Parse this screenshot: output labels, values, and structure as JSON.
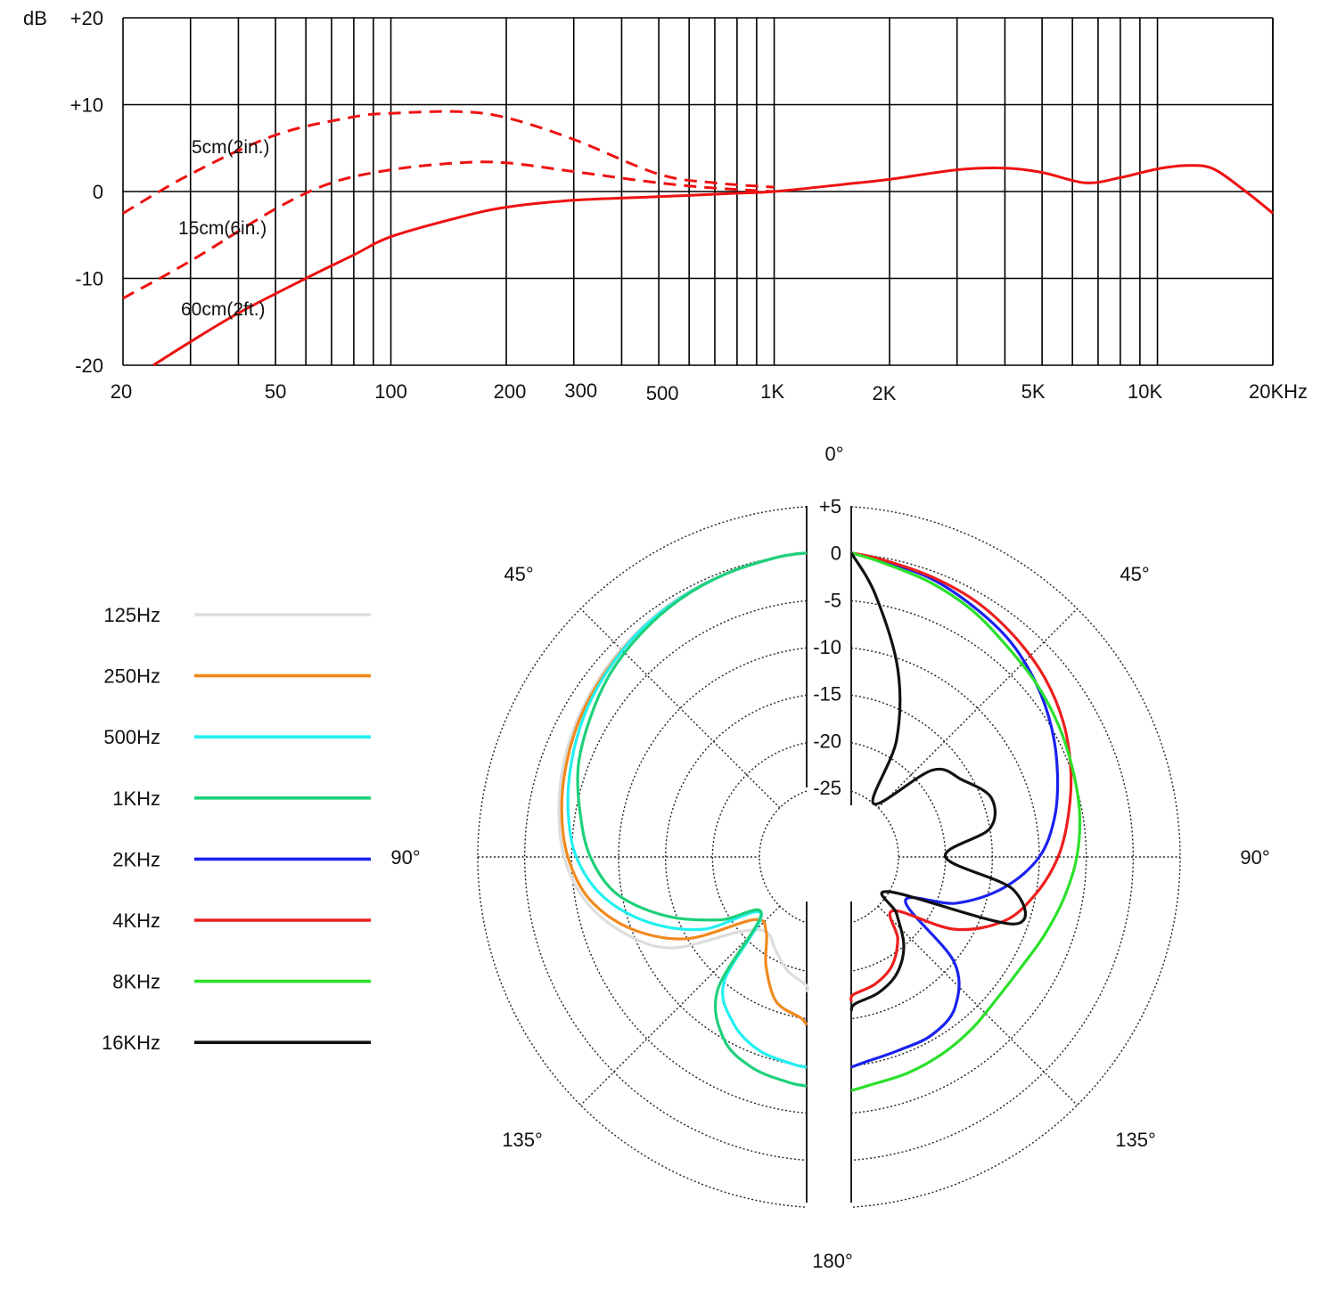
{
  "chart_data": [
    {
      "type": "line",
      "x_scale": "log",
      "xlim": [
        20,
        20000
      ],
      "ylim": [
        -20,
        20
      ],
      "grid": true,
      "ylabel": "dB",
      "y_ticks": [
        {
          "value": 20,
          "label": "+20"
        },
        {
          "value": 10,
          "label": "+10"
        },
        {
          "value": 0,
          "label": "0"
        },
        {
          "value": -10,
          "label": "-10"
        },
        {
          "value": -20,
          "label": "-20"
        }
      ],
      "x_ticks": [
        {
          "value": 20,
          "label": "20"
        },
        {
          "value": 50,
          "label": "50"
        },
        {
          "value": 100,
          "label": "100"
        },
        {
          "value": 200,
          "label": "200"
        },
        {
          "value": 300,
          "label": "300"
        },
        {
          "value": 500,
          "label": "500"
        },
        {
          "value": 1000,
          "label": "1K"
        },
        {
          "value": 2000,
          "label": "2K"
        },
        {
          "value": 5000,
          "label": "5K"
        },
        {
          "value": 10000,
          "label": "10K"
        },
        {
          "value": 20000,
          "label": "20KHz"
        }
      ],
      "series": [
        {
          "name": "5cm(2in.)",
          "color": "#ee1111",
          "style": "dashed",
          "x": [
            20,
            30,
            50,
            80,
            100,
            150,
            200,
            300,
            500,
            700,
            1000
          ],
          "y": [
            -2.5,
            2,
            6.5,
            8.6,
            9,
            9.2,
            8.5,
            6,
            2,
            1,
            0.5
          ]
        },
        {
          "name": "15cm(6in.)",
          "color": "#ee1111",
          "style": "dashed",
          "x": [
            20,
            30,
            50,
            70,
            100,
            150,
            200,
            300,
            500,
            700,
            1000
          ],
          "y": [
            -12.3,
            -8,
            -2,
            1,
            2.5,
            3.3,
            3.3,
            2.3,
            1,
            0.4,
            0
          ]
        },
        {
          "name": "60cm(2ft.)",
          "color": "#ee1111",
          "style": "solid",
          "x": [
            24,
            30,
            40,
            60,
            80,
            100,
            150,
            200,
            300,
            500,
            800,
            1000,
            1500,
            2000,
            3000,
            4000,
            5000,
            6500,
            8000,
            10000,
            12000,
            14000,
            17000,
            20000
          ],
          "y": [
            -20,
            -17.3,
            -14,
            -10,
            -7.3,
            -5.2,
            -3,
            -1.8,
            -1,
            -0.6,
            -0.2,
            0,
            0.8,
            1.4,
            2.5,
            2.7,
            2.2,
            1,
            1.6,
            2.6,
            3,
            2.6,
            0,
            -2.5
          ]
        }
      ]
    },
    {
      "type": "polar",
      "r_unit": "dB",
      "r_range": [
        -25,
        5
      ],
      "r_ticks": [
        "+5",
        "0",
        "-5",
        "-10",
        "-15",
        "-20",
        "-25"
      ],
      "angle_labels": {
        "top": "0°",
        "upper_left": "45°",
        "upper_right": "45°",
        "left": "90°",
        "right": "90°",
        "lower_left": "135°",
        "lower_right": "135°",
        "bottom": "180°"
      },
      "legend": {
        "placement": "left",
        "entries": [
          {
            "label": "125Hz",
            "color": "#dddddd"
          },
          {
            "label": "250Hz",
            "color": "#f08a1e"
          },
          {
            "label": "500Hz",
            "color": "#22f0f0"
          },
          {
            "label": "1KHz",
            "color": "#1ed07a"
          },
          {
            "label": "2KHz",
            "color": "#1a22ee"
          },
          {
            "label": "4KHz",
            "color": "#ee1e1e"
          },
          {
            "label": "8KHz",
            "color": "#2be02b"
          },
          {
            "label": "16KHz",
            "color": "#111111"
          }
        ]
      },
      "left_half": {
        "angles": [
          0,
          10,
          20,
          30,
          40,
          50,
          60,
          70,
          80,
          90,
          100,
          110,
          120,
          130,
          140,
          150,
          160,
          170,
          180
        ],
        "series": [
          {
            "name": "125Hz",
            "color": "#dddddd",
            "r": [
              0,
              0,
              -0.3,
              -0.5,
              -0.9,
              -1.3,
              -1.8,
              -2.4,
              -3.2,
              -4.2,
              -6,
              -9,
              -13,
              -20,
              -22,
              -21,
              -19.5,
              -18.5,
              -18
            ]
          },
          {
            "name": "250Hz",
            "color": "#f08a1e",
            "r": [
              0,
              0,
              -0.3,
              -0.6,
              -1,
              -1.5,
              -2,
              -2.7,
              -3.5,
              -4.6,
              -6.5,
              -10,
              -15,
              -22,
              -22,
              -19,
              -16,
              -15,
              -14.5
            ]
          },
          {
            "name": "500Hz",
            "color": "#22f0f0",
            "r": [
              0,
              0,
              -0.3,
              -0.6,
              -1,
              -1.6,
              -2.3,
              -3.2,
              -4.2,
              -5.5,
              -8,
              -12,
              -17,
              -23,
              -15,
              -12,
              -10.5,
              -10,
              -10
            ]
          },
          {
            "name": "1KHz",
            "color": "#1ed07a",
            "r": [
              0,
              0,
              -0.3,
              -0.7,
              -1.3,
              -2,
              -3,
              -4,
              -5.5,
              -7,
              -9.5,
              -14,
              -19,
              -23,
              -14,
              -10,
              -8.5,
              -8,
              -8
            ]
          }
        ]
      },
      "right_half": {
        "angles": [
          0,
          10,
          20,
          30,
          40,
          50,
          60,
          70,
          80,
          90,
          100,
          110,
          120,
          130,
          140,
          150,
          160,
          170,
          180
        ],
        "series": [
          {
            "name": "2KHz",
            "color": "#1a22ee",
            "r": [
              0,
              -0.3,
              -0.8,
              -1.6,
              -2.4,
              -3.6,
              -5,
              -6.5,
              -8,
              -10,
              -13.5,
              -18,
              -23,
              -15,
              -11.5,
              -10.5,
              -10.5,
              -10.2,
              -10
            ]
          },
          {
            "name": "4KHz",
            "color": "#ee1e1e",
            "r": [
              0,
              -0.2,
              -0.6,
              -1,
              -1.7,
              -2.5,
              -3.6,
              -5,
              -6.5,
              -8,
              -10,
              -12.5,
              -17,
              -23.5,
              -21,
              -19,
              -18,
              -17.5,
              -17
            ]
          },
          {
            "name": "8KHz",
            "color": "#2be02b",
            "r": [
              0,
              -0.5,
              -1.2,
              -2,
              -3,
              -3.6,
              -4.2,
              -4.8,
              -5.3,
              -6,
              -7,
              -8,
              -8.8,
              -9,
              -8.6,
              -8.2,
              -7.9,
              -7.7,
              -7.5
            ]
          },
          {
            "name": "16KHz",
            "color": "#111111",
            "r": [
              0,
              -4,
              -11,
              -18,
              -25,
              -18,
              -16,
              -14,
              -15,
              -20,
              -12.5,
              -11.5,
              -25,
              -23,
              -20,
              -18,
              -17,
              -16.5,
              -16
            ]
          }
        ]
      }
    }
  ]
}
